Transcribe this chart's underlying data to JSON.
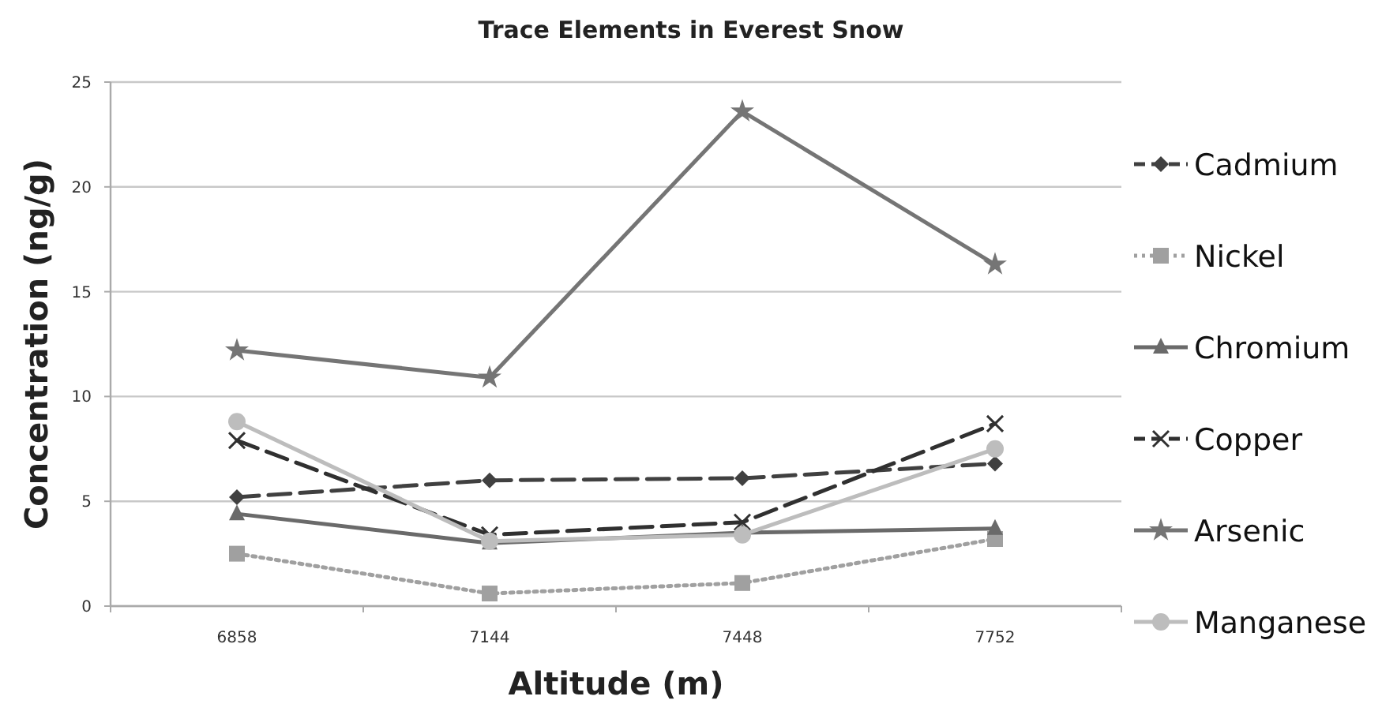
{
  "chart_data": {
    "type": "line",
    "title": "Trace Elements in Everest Snow",
    "xlabel": "Altitude (m)",
    "ylabel": "Concentration (ng/g)",
    "categories": [
      "6858",
      "7144",
      "7448",
      "7752"
    ],
    "ylim": [
      0,
      25
    ],
    "yticks": [
      0,
      5,
      10,
      15,
      20,
      25
    ],
    "grid": "y",
    "legend": "right",
    "series": [
      {
        "name": "Cadmium",
        "color": "#404040",
        "marker": "diamond",
        "line_style": "dashed",
        "values": [
          5.2,
          6.0,
          6.1,
          6.8
        ]
      },
      {
        "name": "Nickel",
        "color": "#a0a0a0",
        "marker": "square",
        "line_style": "dotted",
        "values": [
          2.5,
          0.6,
          1.1,
          3.2
        ]
      },
      {
        "name": "Chromium",
        "color": "#6a6a6a",
        "marker": "triangle",
        "line_style": "solid",
        "values": [
          4.4,
          3.0,
          3.5,
          3.7
        ]
      },
      {
        "name": "Copper",
        "color": "#303030",
        "marker": "cross",
        "line_style": "dashed",
        "values": [
          7.9,
          3.4,
          4.0,
          8.7
        ]
      },
      {
        "name": "Arsenic",
        "color": "#757575",
        "marker": "star",
        "line_style": "solid",
        "values": [
          12.2,
          10.9,
          23.6,
          16.3
        ]
      },
      {
        "name": "Manganese",
        "color": "#bdbdbd",
        "marker": "circle",
        "line_style": "solid",
        "values": [
          8.8,
          3.1,
          3.4,
          7.5
        ]
      }
    ]
  }
}
